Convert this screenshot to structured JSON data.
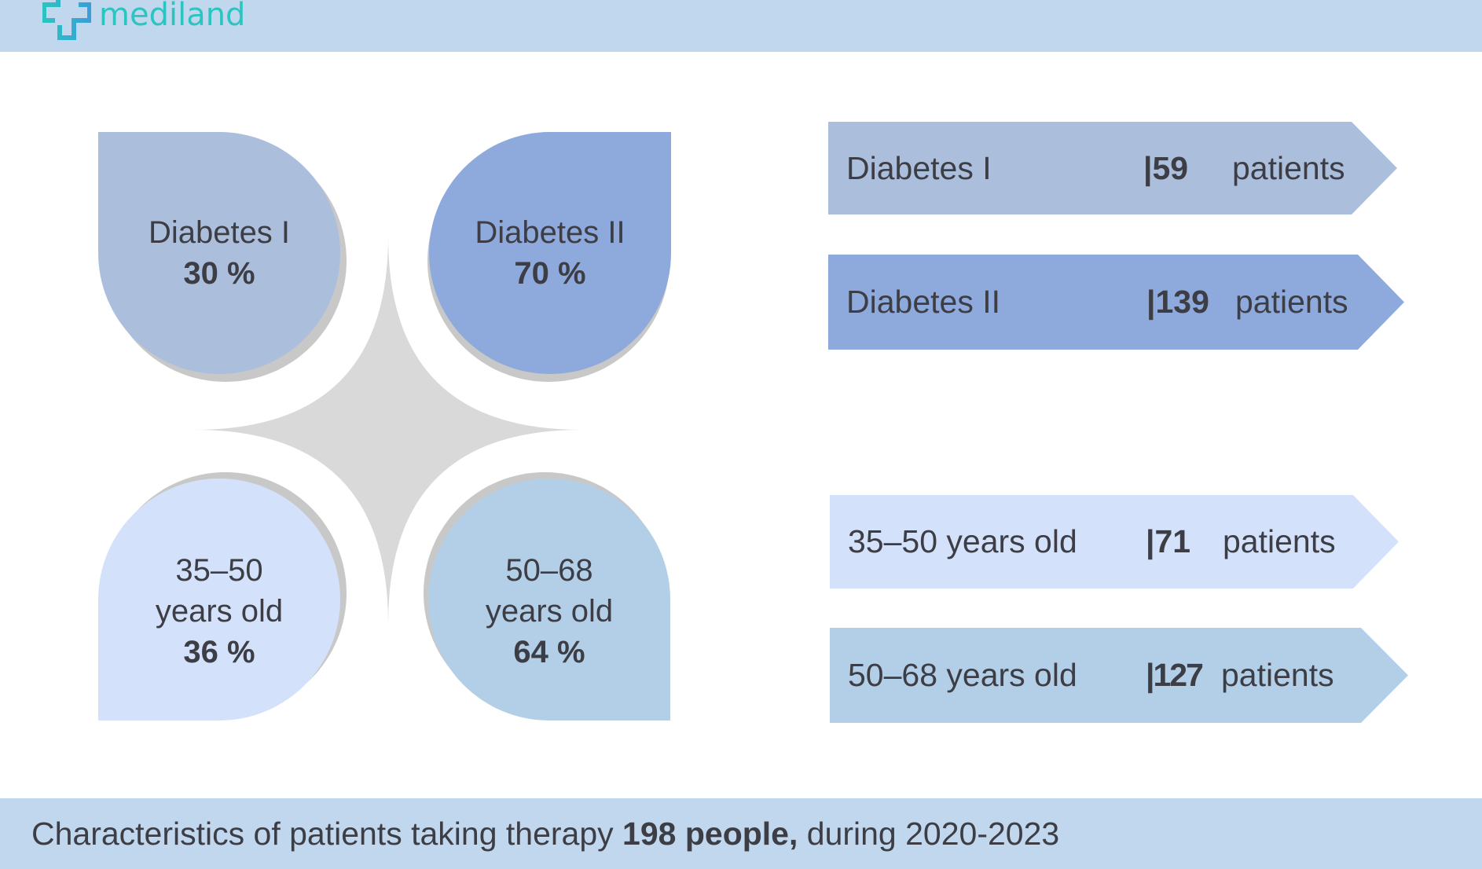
{
  "header": {
    "logo_text": "mediland"
  },
  "groups": [
    {
      "label": "Diabetes I",
      "percent": "30 %",
      "color": "#abbfdd"
    },
    {
      "label": "Diabetes II",
      "percent": "70 %",
      "color": "#8ea9db"
    },
    {
      "label_line1": "35–50",
      "label_line2": "years old",
      "percent": "36 %",
      "color": "#d3e2fa"
    },
    {
      "label_line1": "50–68",
      "label_line2": "years old",
      "percent": "64 %",
      "color": "#b3cfe8"
    }
  ],
  "arrows": [
    {
      "label": "Diabetes I",
      "count": "|59",
      "unit": "patients"
    },
    {
      "label": "Diabetes II",
      "count": "|139",
      "unit": "patients"
    },
    {
      "label": "35–50 years old",
      "count": "|71",
      "unit": "patients"
    },
    {
      "label": "50–68 years old",
      "count": "|127",
      "unit": "patients"
    }
  ],
  "footer": {
    "text_before": "Characteristics of patients taking therapy ",
    "text_bold": "198 people,",
    "text_after": " during 2020-2023"
  }
}
